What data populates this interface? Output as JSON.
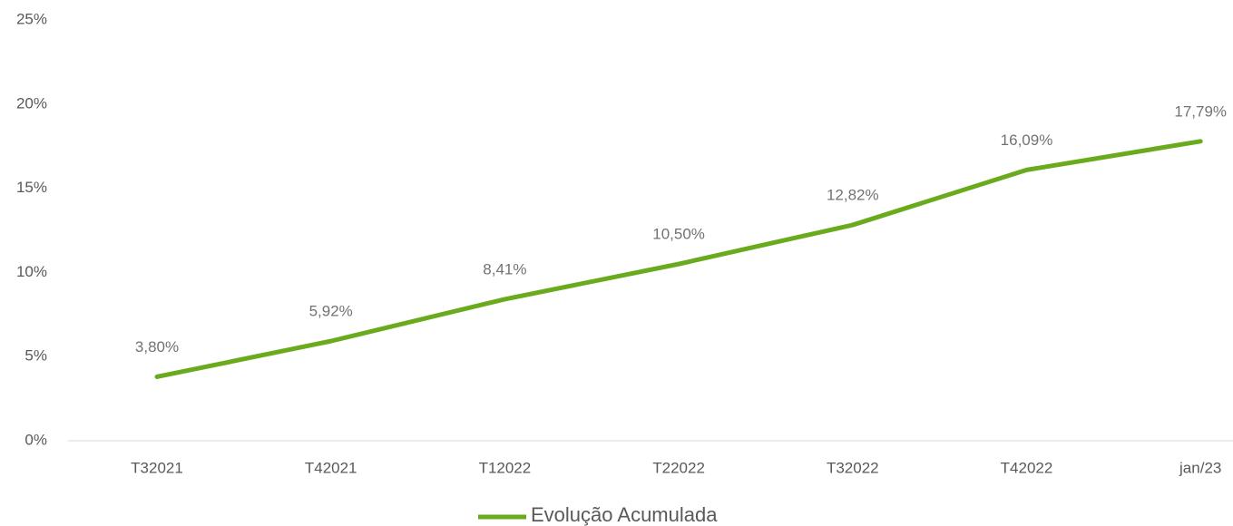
{
  "chart_data": {
    "type": "line",
    "categories": [
      "T32021",
      "T42021",
      "T12022",
      "T22022",
      "T32022",
      "T42022",
      "jan/23"
    ],
    "series": [
      {
        "name": "Evolução Acumulada",
        "color": "#6aab1d",
        "values": [
          3.8,
          5.92,
          8.41,
          10.5,
          12.82,
          16.09,
          17.79
        ],
        "value_labels": [
          "3,80%",
          "5,92%",
          "8,41%",
          "10,50%",
          "12,82%",
          "16,09%",
          "17,79%"
        ]
      }
    ],
    "ylim": [
      0,
      25
    ],
    "yticks": [
      {
        "value": 0,
        "label": "0%"
      },
      {
        "value": 5,
        "label": "5%"
      },
      {
        "value": 10,
        "label": "10%"
      },
      {
        "value": 15,
        "label": "15%"
      },
      {
        "value": 20,
        "label": "20%"
      },
      {
        "value": 25,
        "label": "25%"
      }
    ],
    "grid": false,
    "legend": "bottom"
  }
}
